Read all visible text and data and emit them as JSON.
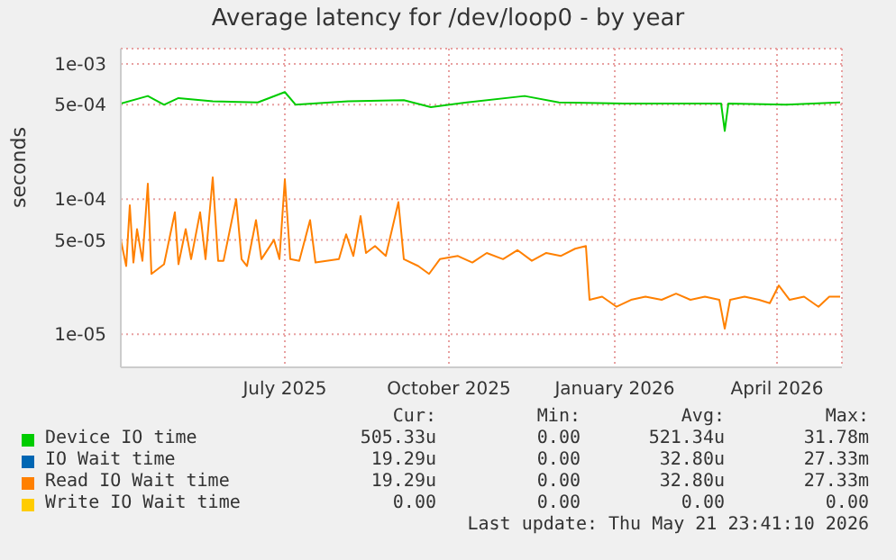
{
  "chart_data": {
    "type": "line",
    "title": "Average latency for /dev/loop0 - by year",
    "ylabel": "seconds",
    "log": true,
    "grid": true,
    "legend": "bottom",
    "marker": "none",
    "line_style": "solid",
    "xlim": [
      "2025-04-16",
      "2026-05-21"
    ],
    "xticks": [
      {
        "value": "2025-07-16",
        "label": "July 2025"
      },
      {
        "value": "2025-10-15",
        "label": "October 2025"
      },
      {
        "value": "2026-01-15",
        "label": "January 2026"
      },
      {
        "value": "2026-04-15",
        "label": "April 2026"
      }
    ],
    "ylim": [
      5.7e-06,
      0.0013
    ],
    "yticks": [
      {
        "value": 1e-05,
        "label": "1e-05"
      },
      {
        "value": 5e-05,
        "label": "5e-05"
      },
      {
        "value": 0.0001,
        "label": "1e-04"
      },
      {
        "value": 0.0005,
        "label": "5e-04"
      },
      {
        "value": 0.001,
        "label": "1e-03"
      }
    ],
    "series": [
      {
        "name": "Device IO time",
        "color": "#00cc00",
        "x": [
          "2025-04-16",
          "2025-05-01",
          "2025-05-10",
          "2025-05-18",
          "2025-06-06",
          "2025-07-01",
          "2025-07-16",
          "2025-07-22",
          "2025-08-20",
          "2025-09-20",
          "2025-10-05",
          "2025-10-25",
          "2025-11-26",
          "2025-12-15",
          "2026-01-20",
          "2026-02-20",
          "2026-03-15",
          "2026-03-17",
          "2026-03-19",
          "2026-04-20",
          "2026-05-20"
        ],
        "values": [
          0.00051,
          0.00058,
          0.0005,
          0.00056,
          0.00053,
          0.00052,
          0.00062,
          0.0005,
          0.00053,
          0.00054,
          0.00048,
          0.00052,
          0.00058,
          0.00052,
          0.00051,
          0.00051,
          0.00051,
          0.00032,
          0.00051,
          0.0005,
          0.00052
        ]
      },
      {
        "name": "IO Wait time",
        "color": "#0066b3"
      },
      {
        "name": "Read IO Wait time",
        "color": "#ff8000",
        "x": [
          "2025-04-16",
          "2025-04-19",
          "2025-04-21",
          "2025-04-23",
          "2025-04-25",
          "2025-04-28",
          "2025-05-01",
          "2025-05-03",
          "2025-05-10",
          "2025-05-16",
          "2025-05-18",
          "2025-05-22",
          "2025-05-25",
          "2025-05-30",
          "2025-06-02",
          "2025-06-06",
          "2025-06-09",
          "2025-06-12",
          "2025-06-19",
          "2025-06-22",
          "2025-06-25",
          "2025-06-30",
          "2025-07-03",
          "2025-07-10",
          "2025-07-13",
          "2025-07-16",
          "2025-07-19",
          "2025-07-24",
          "2025-07-30",
          "2025-08-02",
          "2025-08-15",
          "2025-08-19",
          "2025-08-23",
          "2025-08-27",
          "2025-08-30",
          "2025-09-04",
          "2025-09-10",
          "2025-09-17",
          "2025-09-20",
          "2025-09-28",
          "2025-10-04",
          "2025-10-10",
          "2025-10-20",
          "2025-10-28",
          "2025-11-05",
          "2025-11-14",
          "2025-11-22",
          "2025-11-30",
          "2025-12-08",
          "2025-12-16",
          "2025-12-24",
          "2025-12-30",
          "2026-01-01",
          "2026-01-08",
          "2026-01-16",
          "2026-01-24",
          "2026-02-01",
          "2026-02-10",
          "2026-02-18",
          "2026-02-26",
          "2026-03-06",
          "2026-03-14",
          "2026-03-17",
          "2026-03-20",
          "2026-03-28",
          "2026-04-05",
          "2026-04-11",
          "2026-04-16",
          "2026-04-22",
          "2026-04-30",
          "2026-05-08",
          "2026-05-14",
          "2026-05-20"
        ],
        "values": [
          5e-05,
          3.2e-05,
          9e-05,
          3.4e-05,
          6e-05,
          3.5e-05,
          0.00013,
          2.8e-05,
          3.3e-05,
          8e-05,
          3.3e-05,
          6e-05,
          3.6e-05,
          8e-05,
          3.6e-05,
          0.000145,
          3.5e-05,
          3.5e-05,
          0.0001,
          3.6e-05,
          3.2e-05,
          7e-05,
          3.6e-05,
          5e-05,
          3.6e-05,
          0.00014,
          3.6e-05,
          3.5e-05,
          7e-05,
          3.4e-05,
          3.6e-05,
          5.5e-05,
          3.8e-05,
          7.5e-05,
          4e-05,
          4.5e-05,
          3.8e-05,
          9.5e-05,
          3.6e-05,
          3.2e-05,
          2.8e-05,
          3.6e-05,
          3.8e-05,
          3.4e-05,
          4e-05,
          3.6e-05,
          4.2e-05,
          3.5e-05,
          4e-05,
          3.8e-05,
          4.3e-05,
          4.5e-05,
          1.8e-05,
          1.9e-05,
          1.6e-05,
          1.8e-05,
          1.9e-05,
          1.8e-05,
          2e-05,
          1.8e-05,
          1.9e-05,
          1.8e-05,
          1.1e-05,
          1.8e-05,
          1.9e-05,
          1.8e-05,
          1.7e-05,
          2.3e-05,
          1.8e-05,
          1.9e-05,
          1.6e-05,
          1.9e-05,
          1.9e-05
        ]
      },
      {
        "name": "Write IO Wait time",
        "color": "#ffcc00"
      }
    ],
    "annotations": [
      "Cur:",
      "Min:",
      "Avg:",
      "Max:",
      "505.33u",
      "0.00",
      "521.34u",
      "31.78m",
      "19.29u",
      "0.00",
      "32.80u",
      "27.33m",
      "19.29u",
      "0.00",
      "32.80u",
      "27.33m",
      "0.00",
      "0.00",
      "0.00",
      "0.00",
      "Last update: Thu May 21 23:41:10 2026"
    ]
  }
}
